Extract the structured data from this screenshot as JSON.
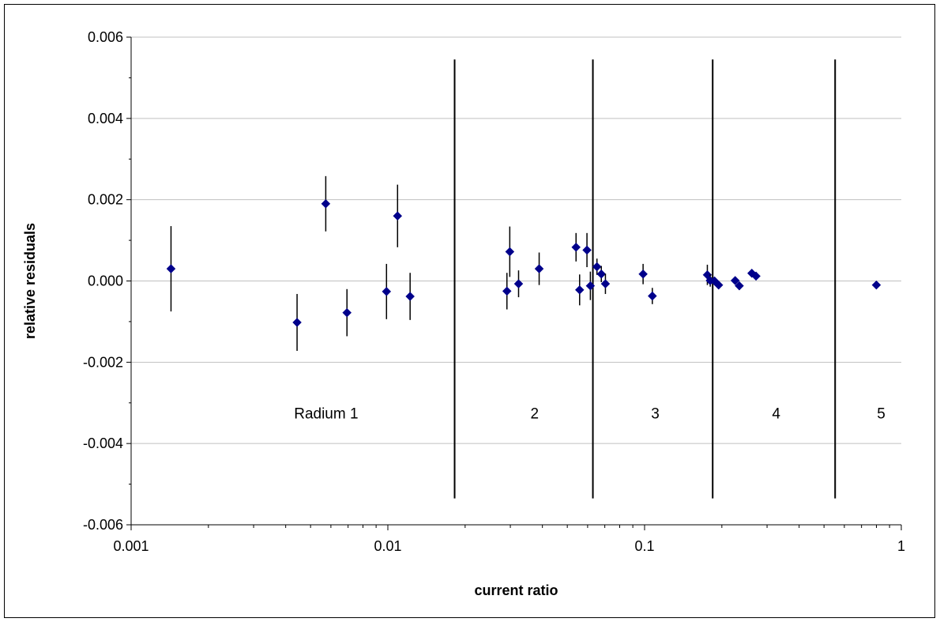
{
  "chart_data": {
    "type": "scatter",
    "title": "",
    "xlabel": "current ratio",
    "ylabel": "relative residuals",
    "x_scale": "log",
    "xlim": [
      0.001,
      1
    ],
    "ylim": [
      -0.006,
      0.006
    ],
    "grid": "horizontal",
    "x_ticks": [
      {
        "value": 0.001,
        "label": "0.001"
      },
      {
        "value": 0.01,
        "label": "0.01"
      },
      {
        "value": 0.1,
        "label": "0.1"
      },
      {
        "value": 1,
        "label": "1"
      }
    ],
    "y_ticks": [
      {
        "value": 0.006,
        "label": "0.006"
      },
      {
        "value": 0.004,
        "label": "0.004"
      },
      {
        "value": 0.002,
        "label": "0.002"
      },
      {
        "value": 0,
        "label": "0.000"
      },
      {
        "value": -0.002,
        "label": "-0.002"
      },
      {
        "value": -0.004,
        "label": "-0.004"
      },
      {
        "value": -0.006,
        "label": "-0.006"
      }
    ],
    "marker_color": "#00008B",
    "points": [
      {
        "x": 0.00143,
        "y": 0.0003,
        "err": 0.00105
      },
      {
        "x": 0.00443,
        "y": -0.00102,
        "err": 0.0007
      },
      {
        "x": 0.00573,
        "y": 0.0019,
        "err": 0.00068
      },
      {
        "x": 0.00693,
        "y": -0.00078,
        "err": 0.00058
      },
      {
        "x": 0.00988,
        "y": -0.00026,
        "err": 0.00068
      },
      {
        "x": 0.01091,
        "y": 0.0016,
        "err": 0.00077
      },
      {
        "x": 0.01221,
        "y": -0.00038,
        "err": 0.00058
      },
      {
        "x": 0.0291,
        "y": -0.00025,
        "err": 0.00045
      },
      {
        "x": 0.02985,
        "y": 0.00072,
        "err": 0.00062
      },
      {
        "x": 0.0323,
        "y": -7e-05,
        "err": 0.00033
      },
      {
        "x": 0.03885,
        "y": 0.0003,
        "err": 0.0004
      },
      {
        "x": 0.05408,
        "y": 0.00083,
        "err": 0.00035
      },
      {
        "x": 0.05585,
        "y": -0.00022,
        "err": 0.00038
      },
      {
        "x": 0.05965,
        "y": 0.00076,
        "err": 0.00042
      },
      {
        "x": 0.0615,
        "y": -0.00012,
        "err": 0.00035
      },
      {
        "x": 0.06524,
        "y": 0.00035,
        "err": 0.0002
      },
      {
        "x": 0.06785,
        "y": 0.00017,
        "err": 0.0002
      },
      {
        "x": 0.07039,
        "y": -7e-05,
        "err": 0.00025
      },
      {
        "x": 0.09868,
        "y": 0.00017,
        "err": 0.00025
      },
      {
        "x": 0.1072,
        "y": -0.00037,
        "err": 0.0002
      },
      {
        "x": 0.1756,
        "y": 0.00015,
        "err": 0.00025
      },
      {
        "x": 0.1802,
        "y": 1e-05,
        "err": 0.00015
      },
      {
        "x": 0.1873,
        "y": 0.0,
        "err": 0.0001
      },
      {
        "x": 0.1943,
        "y": -0.0001,
        "err": 0.0001
      },
      {
        "x": 0.2254,
        "y": 1e-05,
        "err": 0.0001
      },
      {
        "x": 0.2339,
        "y": -0.00012,
        "err": 0.0001
      },
      {
        "x": 0.2617,
        "y": 0.00019,
        "err": 0.0001
      },
      {
        "x": 0.2717,
        "y": 0.00012,
        "err": 0.0001
      },
      {
        "x": 0.7997,
        "y": -0.0001,
        "err": 5e-05
      }
    ],
    "region_boundaries": [
      0.0182,
      0.0629,
      0.1842,
      0.5524
    ],
    "region_line_span": [
      -0.00535,
      0.00545
    ],
    "region_labels": [
      {
        "text": "Radium 1",
        "x": 0.00575,
        "y": -0.00325
      },
      {
        "text": "2",
        "x": 0.0373,
        "y": -0.00325
      },
      {
        "text": "3",
        "x": 0.1101,
        "y": -0.00325
      },
      {
        "text": "4",
        "x": 0.3257,
        "y": -0.00325
      },
      {
        "text": "5",
        "x": 0.8346,
        "y": -0.00325
      }
    ]
  }
}
